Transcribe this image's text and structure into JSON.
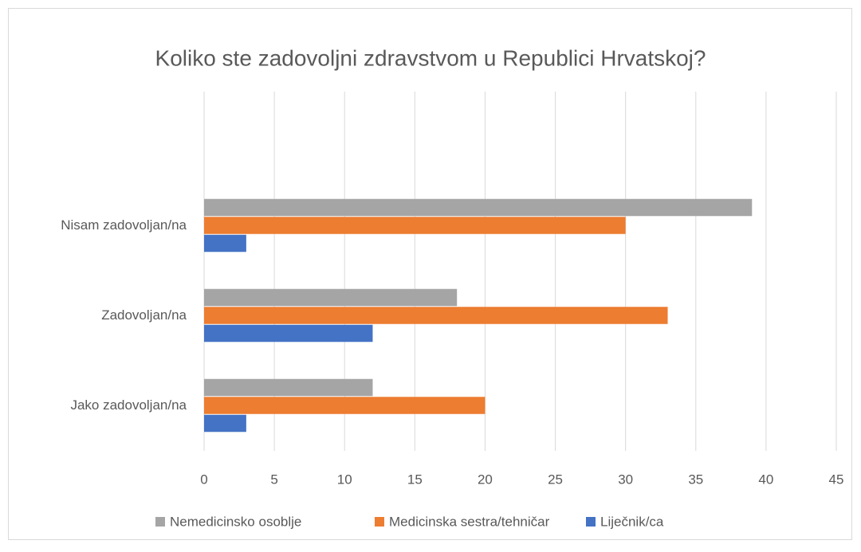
{
  "chart_data": {
    "type": "bar",
    "orientation": "horizontal",
    "title": "Koliko ste zadovoljni zdravstvom u Republici Hrvatskoj?",
    "categories": [
      "Nisam zadovoljan/na",
      "Zadovoljan/na",
      "Jako zadovoljan/na"
    ],
    "series": [
      {
        "name": "Nemedicinsko osoblje",
        "color": "#a5a5a5",
        "values": [
          39,
          18,
          12
        ]
      },
      {
        "name": "Medicinska sestra/tehničar",
        "color": "#ed7d31",
        "values": [
          30,
          33,
          20
        ]
      },
      {
        "name": "Liječnik/ca",
        "color": "#4472c4",
        "values": [
          3,
          12,
          3
        ]
      }
    ],
    "xlim": [
      0,
      45
    ],
    "xticks": [
      0,
      5,
      10,
      15,
      20,
      25,
      30,
      35,
      40,
      45
    ],
    "grid": true,
    "legend": "bottom"
  }
}
